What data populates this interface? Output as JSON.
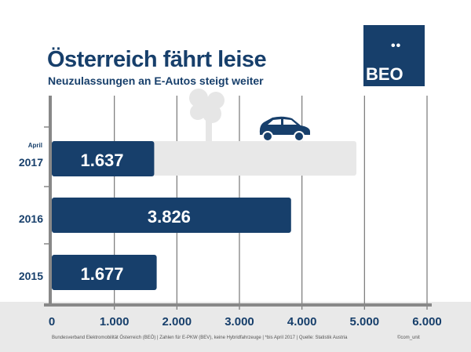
{
  "header": {
    "title": "Österreich fährt leise",
    "subtitle": "Neuzulassungen an E-Autos steigt weiter",
    "logo": "BEO"
  },
  "chart_data": {
    "type": "bar",
    "orientation": "horizontal",
    "categories": [
      {
        "top": "April",
        "main": "2017"
      },
      {
        "main": "2016"
      },
      {
        "main": "2015"
      }
    ],
    "values": [
      1637,
      3826,
      1677
    ],
    "value_labels": [
      "1.637",
      "3.826",
      "1.677"
    ],
    "xlim": [
      0,
      6000
    ],
    "xticks": [
      "0",
      "1.000",
      "2.000",
      "3.000",
      "4.000",
      "5.000",
      "6.000"
    ],
    "grid": true,
    "bar_color": "#173f6b",
    "background_bar_color": "#e8e8e8"
  },
  "footer": {
    "source": "Bundesverband Elektromobilität Österreich (BEÖ) | Zahlen für E-PKW (BEV), keine Hybridfahrzeuge | *bis April 2017 | Quelle: Statistik Austria",
    "credit": "©com_unit"
  }
}
